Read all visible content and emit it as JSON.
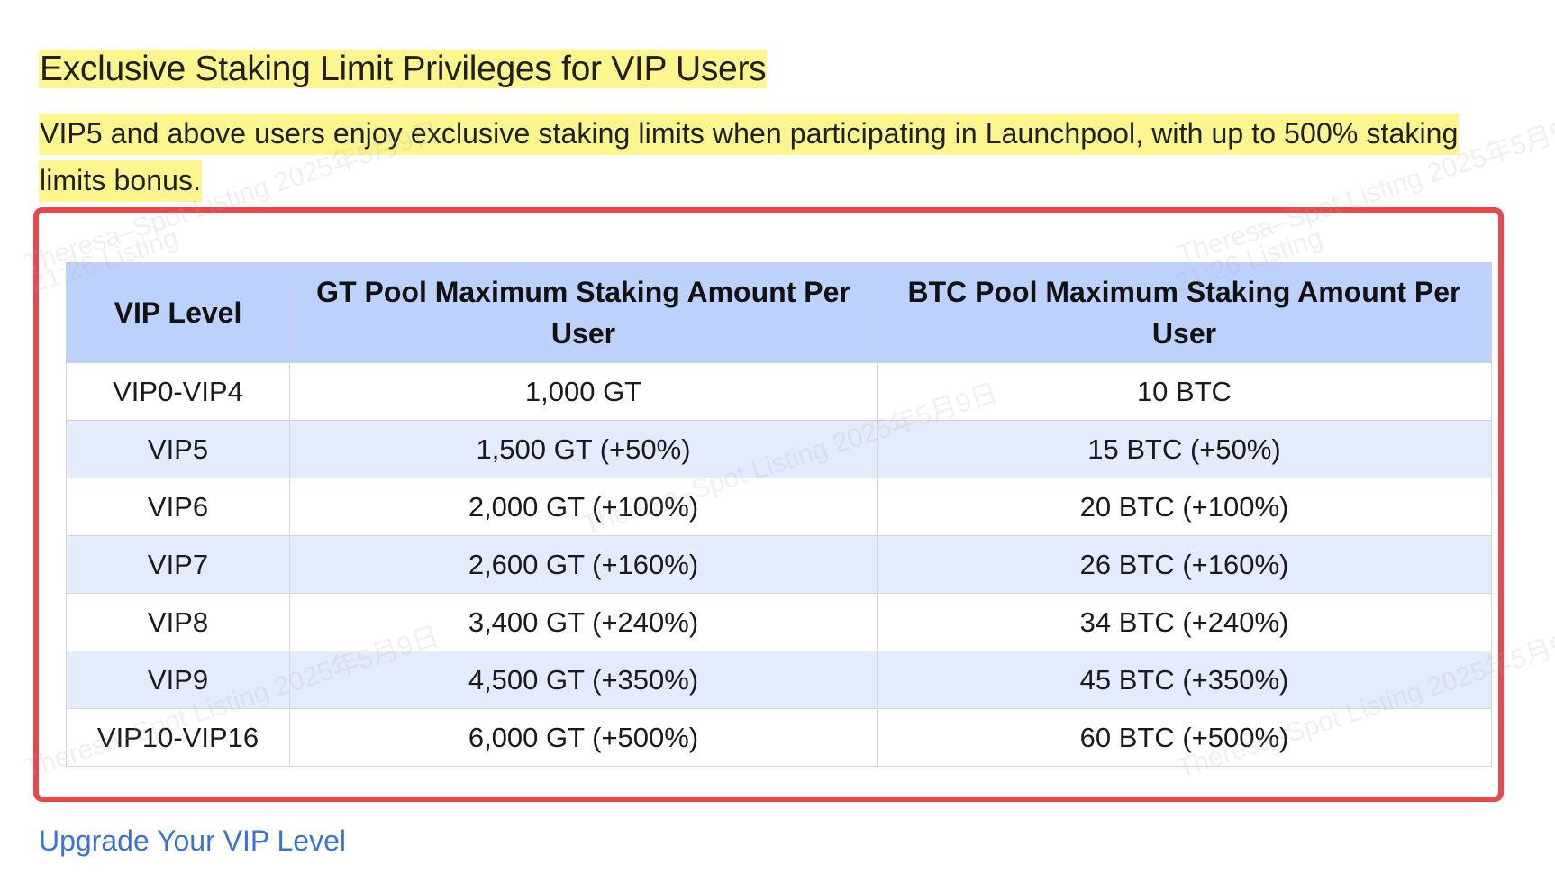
{
  "heading": "Exclusive Staking Limit Privileges for VIP Users",
  "intro": "VIP5 and above users enjoy exclusive staking limits when participating in Launchpool, with up to 500% staking limits bonus.",
  "table": {
    "headers": [
      "VIP Level",
      "GT Pool Maximum Staking Amount Per User",
      "BTC Pool Maximum Staking Amount Per User"
    ],
    "rows": [
      [
        "VIP0-VIP4",
        "1,000 GT",
        "10 BTC"
      ],
      [
        "VIP5",
        "1,500 GT (+50%)",
        "15 BTC (+50%)"
      ],
      [
        "VIP6",
        "2,000 GT (+100%)",
        "20 BTC (+100%)"
      ],
      [
        "VIP7",
        "2,600 GT (+160%)",
        "26 BTC (+160%)"
      ],
      [
        "VIP8",
        "3,400 GT (+240%)",
        "34 BTC (+240%)"
      ],
      [
        "VIP9",
        "4,500 GT (+350%)",
        "45 BTC (+350%)"
      ],
      [
        "VIP10-VIP16",
        "6,000 GT (+500%)",
        "60 BTC (+500%)"
      ]
    ]
  },
  "link": {
    "label": "Upgrade Your VIP Level"
  },
  "watermark": {
    "line1": "Theresa–Spot Listing 2025年5月9日",
    "line2": "21:26 Listing"
  },
  "colors": {
    "highlight": "#fdf58e",
    "header_bg": "#bcd1fb",
    "stripe_bg": "#e4ebfd",
    "frame_border": "#e5484d",
    "link": "#3973d6"
  }
}
